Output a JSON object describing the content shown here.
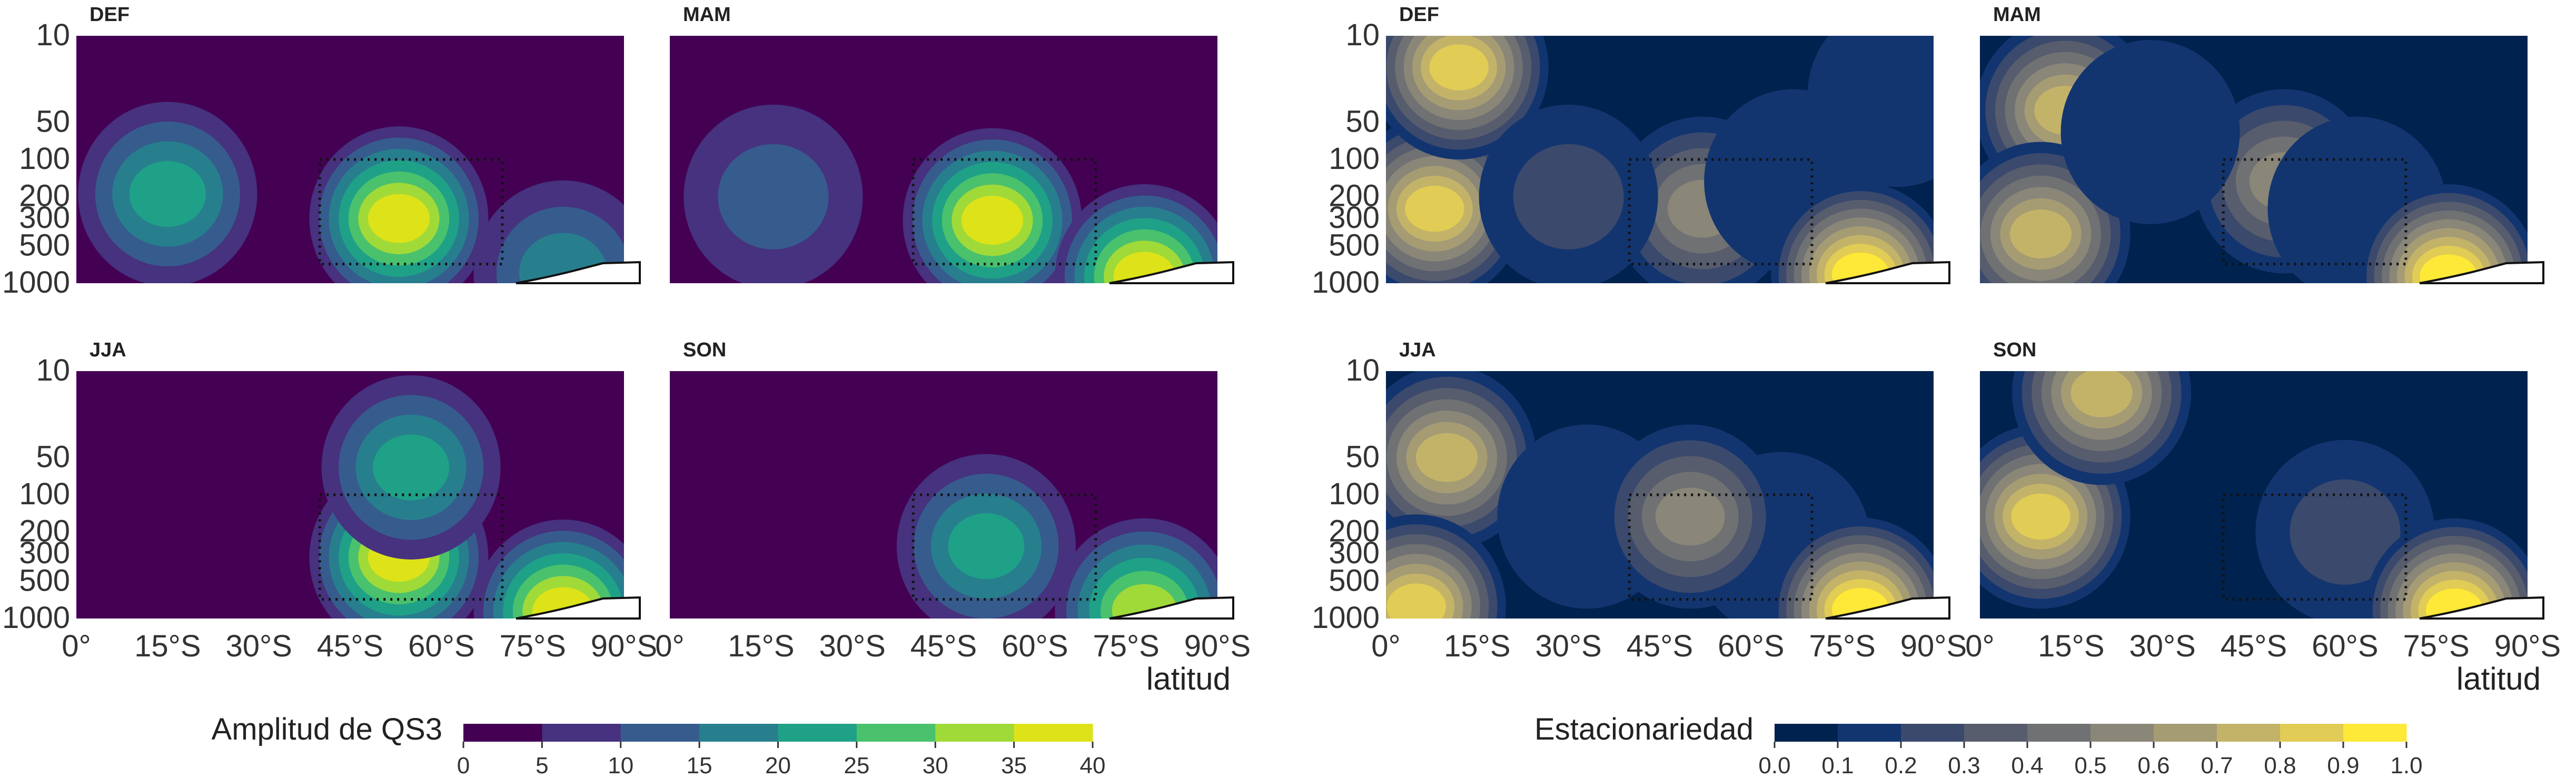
{
  "chart_data": [
    {
      "type": "heatmap",
      "variable": "amplitude",
      "panels": [
        "DEF",
        "MAM",
        "JJA",
        "SON"
      ],
      "x_ticks": [
        "0°",
        "15°S",
        "30°S",
        "45°S",
        "60°S",
        "75°S",
        "90°S"
      ],
      "x_range": [
        0,
        90
      ],
      "xlabel": "latitud",
      "y_ticks": [
        "10",
        "50",
        "100",
        "200",
        "300",
        "500",
        "1000"
      ],
      "y_scale": "log",
      "y_range": [
        1000,
        10
      ],
      "highlight_box": {
        "lat": [
          40,
          70
        ],
        "pressure_hPa": [
          100,
          700
        ]
      },
      "colorbar": {
        "label": "Amplitud de QS3",
        "ticks": [
          "0",
          "5",
          "10",
          "15",
          "20",
          "25",
          "30",
          "35",
          "40"
        ],
        "levels": [
          0,
          5,
          10,
          15,
          20,
          25,
          30,
          35,
          40
        ],
        "colors": [
          "#440154",
          "#46327e",
          "#365c8d",
          "#277f8e",
          "#1fa187",
          "#4ac16d",
          "#a0da39",
          "#dde318"
        ]
      },
      "panel_data": {
        "DEF": {
          "blobs": [
            {
              "lat": 53,
              "p": 300,
              "amp": 36
            },
            {
              "lat": 15,
              "p": 190,
              "amp": 23
            },
            {
              "lat": 80,
              "p": 820,
              "amp": 18
            }
          ]
        },
        "MAM": {
          "blobs": [
            {
              "lat": 53,
              "p": 310,
              "amp": 37
            },
            {
              "lat": 17,
              "p": 200,
              "amp": 14
            },
            {
              "lat": 78,
              "p": 880,
              "amp": 40
            }
          ]
        },
        "JJA": {
          "blobs": [
            {
              "lat": 53,
              "p": 320,
              "amp": 38
            },
            {
              "lat": 55,
              "p": 60,
              "amp": 24
            },
            {
              "lat": 80,
              "p": 880,
              "amp": 40
            }
          ]
        },
        "SON": {
          "blobs": [
            {
              "lat": 52,
              "p": 260,
              "amp": 25
            },
            {
              "lat": 78,
              "p": 860,
              "amp": 33
            }
          ]
        }
      }
    },
    {
      "type": "heatmap",
      "variable": "stationarity",
      "panels": [
        "DEF",
        "MAM",
        "JJA",
        "SON"
      ],
      "x_ticks": [
        "0°",
        "15°S",
        "30°S",
        "45°S",
        "60°S",
        "75°S",
        "90°S"
      ],
      "x_range": [
        0,
        90
      ],
      "xlabel": "latitud",
      "y_ticks": [
        "10",
        "50",
        "100",
        "200",
        "300",
        "500",
        "1000"
      ],
      "y_scale": "log",
      "y_range": [
        1000,
        10
      ],
      "highlight_box": {
        "lat": [
          40,
          70
        ],
        "pressure_hPa": [
          100,
          700
        ]
      },
      "colorbar": {
        "label": "Estacionariedad",
        "ticks": [
          "0.0",
          "0.1",
          "0.2",
          "0.3",
          "0.4",
          "0.5",
          "0.6",
          "0.7",
          "0.8",
          "0.9",
          "1.0"
        ],
        "levels": [
          0.0,
          0.1,
          0.2,
          0.3,
          0.4,
          0.5,
          0.6,
          0.7,
          0.8,
          0.9,
          1.0
        ],
        "colors": [
          "#00224e",
          "#123570",
          "#3b496c",
          "#575d6d",
          "#707173",
          "#8a8678",
          "#a59c74",
          "#c3b369",
          "#e1cc55",
          "#fee838"
        ]
      },
      "panel_data": {
        "DEF": {
          "blobs": [
            {
              "lat": 8,
              "p": 250,
              "amp": 0.88
            },
            {
              "lat": 12,
              "p": 18,
              "amp": 0.82
            },
            {
              "lat": 52,
              "p": 250,
              "amp": 0.58
            },
            {
              "lat": 30,
              "p": 200,
              "amp": 0.22
            },
            {
              "lat": 67,
              "p": 150,
              "amp": 0.15
            },
            {
              "lat": 84,
              "p": 30,
              "amp": 0.12
            },
            {
              "lat": 78,
              "p": 850,
              "amp": 0.95
            }
          ]
        },
        "MAM": {
          "blobs": [
            {
              "lat": 14,
              "p": 40,
              "amp": 0.8
            },
            {
              "lat": 10,
              "p": 400,
              "amp": 0.72
            },
            {
              "lat": 50,
              "p": 150,
              "amp": 0.6
            },
            {
              "lat": 28,
              "p": 60,
              "amp": 0.2
            },
            {
              "lat": 62,
              "p": 250,
              "amp": 0.18
            },
            {
              "lat": 77,
              "p": 880,
              "amp": 0.98
            }
          ]
        },
        "JJA": {
          "blobs": [
            {
              "lat": 10,
              "p": 50,
              "amp": 0.75
            },
            {
              "lat": 5,
              "p": 800,
              "amp": 0.9
            },
            {
              "lat": 33,
              "p": 150,
              "amp": 0.15
            },
            {
              "lat": 65,
              "p": 250,
              "amp": 0.12
            },
            {
              "lat": 50,
              "p": 150,
              "amp": 0.58
            },
            {
              "lat": 78,
              "p": 850,
              "amp": 0.95
            }
          ]
        },
        "SON": {
          "blobs": [
            {
              "lat": 10,
              "p": 150,
              "amp": 0.85
            },
            {
              "lat": 50,
              "p": 40,
              "amp": 0.08
            },
            {
              "lat": 60,
              "p": 200,
              "amp": 0.25
            },
            {
              "lat": 20,
              "p": 15,
              "amp": 0.72
            },
            {
              "lat": 78,
              "p": 860,
              "amp": 0.95
            }
          ]
        }
      }
    }
  ]
}
